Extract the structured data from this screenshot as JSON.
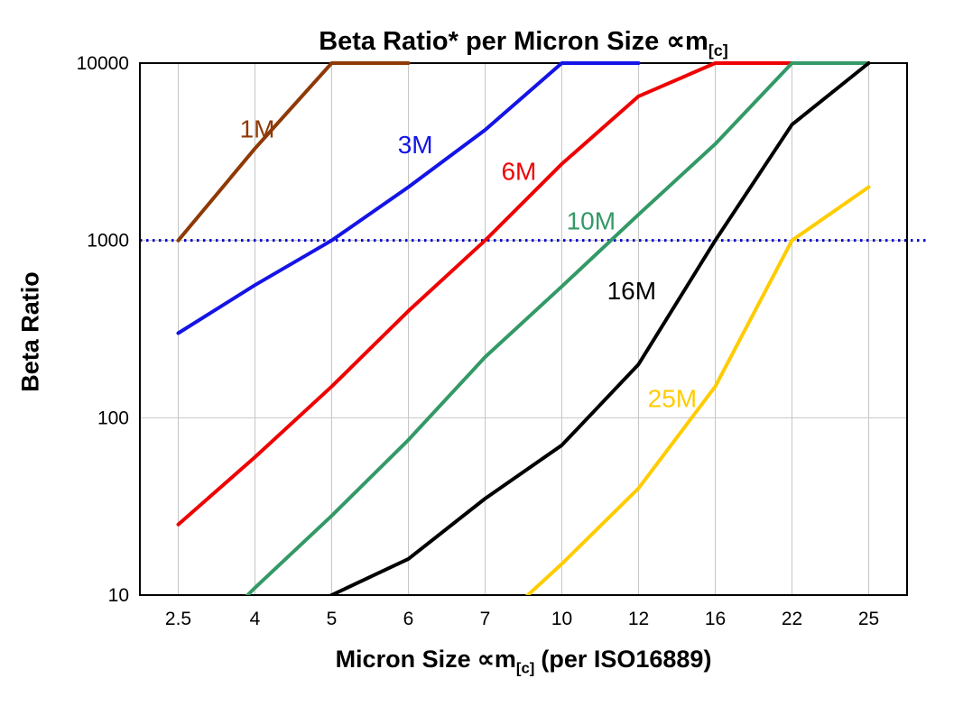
{
  "chart_data": {
    "type": "line",
    "title": {
      "text": "Beta Ratio* per Micron Size",
      "symbol": "∝m",
      "subscript": "[c]"
    },
    "xlabel": {
      "prefix": "Micron Size",
      "symbol": "∝m",
      "subscript": "[c]",
      "suffix": "(per ISO16889)"
    },
    "ylabel": "Beta Ratio",
    "x_categories": [
      "2.5",
      "4",
      "5",
      "6",
      "7",
      "10",
      "12",
      "16",
      "22",
      "25"
    ],
    "y_ticks": [
      "10",
      "100",
      "1000",
      "10000"
    ],
    "y_scale": "log",
    "ylim": [
      10,
      10000
    ],
    "grid": true,
    "legend_position": "inline-labels",
    "reference_line": {
      "value": 1000,
      "style": "dotted",
      "color": "#0000CC"
    },
    "series": [
      {
        "name": "1M",
        "color": "#8F3906",
        "values": [
          1000,
          3300,
          10000,
          10000,
          null,
          null,
          null,
          null,
          null,
          null
        ],
        "label_pos": {
          "xi": 1.03,
          "value": 3800
        }
      },
      {
        "name": "3M",
        "color": "#1414E6",
        "values": [
          300,
          560,
          1000,
          2000,
          4200,
          10000,
          10000,
          null,
          null,
          null
        ],
        "label_pos": {
          "xi": 3.09,
          "value": 3100
        }
      },
      {
        "name": "6M",
        "color": "#EE0202",
        "values": [
          25,
          60,
          150,
          400,
          1000,
          2700,
          6500,
          10000,
          10000,
          null
        ],
        "label_pos": {
          "xi": 4.44,
          "value": 2200
        }
      },
      {
        "name": "10M",
        "color": "#339966",
        "values": [
          4,
          11,
          28,
          75,
          220,
          550,
          1400,
          3500,
          10000,
          10000
        ],
        "label_pos": {
          "xi": 5.38,
          "value": 1150
        }
      },
      {
        "name": "16M",
        "color": "#000000",
        "values": [
          null,
          6,
          10,
          16,
          35,
          70,
          200,
          1000,
          4500,
          10000
        ],
        "label_pos": {
          "xi": 5.91,
          "value": 465
        }
      },
      {
        "name": "25M",
        "color": "#FFCC00",
        "values": [
          null,
          null,
          null,
          null,
          6,
          15,
          40,
          150,
          1000,
          2000
        ],
        "label_pos": {
          "xi": 6.44,
          "value": 115
        }
      }
    ]
  },
  "colors": {
    "background": "#FFFFFF",
    "axis": "#000000",
    "grid": "#C6C6C6",
    "reference_line": "#0000CC"
  }
}
